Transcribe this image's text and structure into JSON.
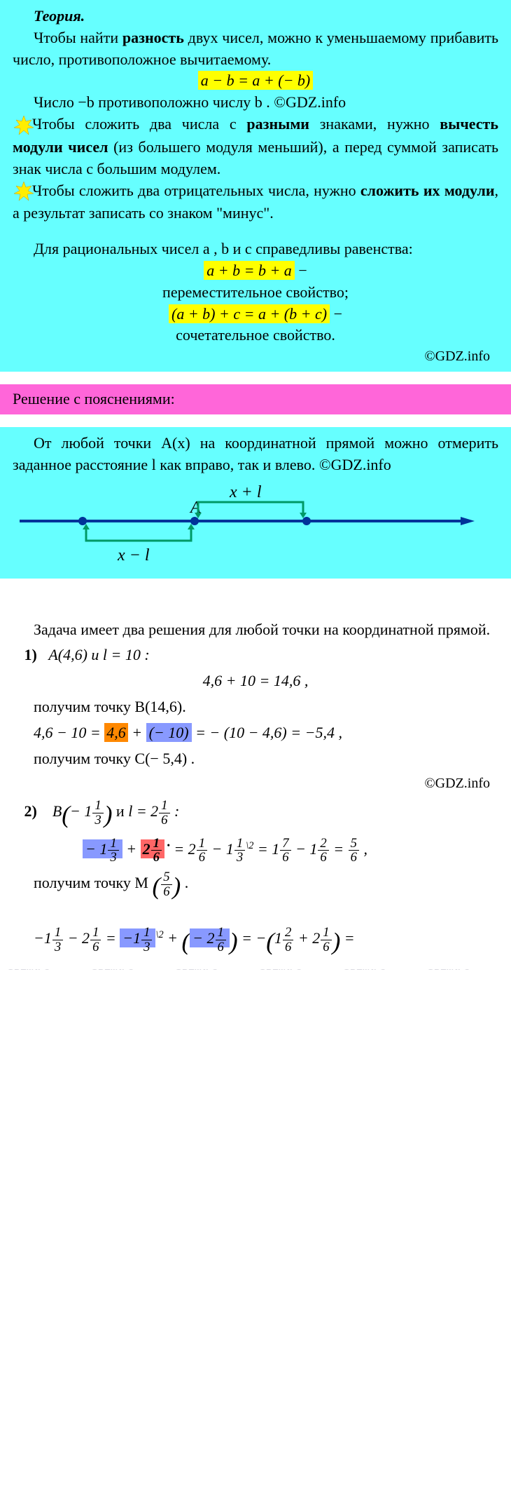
{
  "watermark_text": "GDZ.INFO",
  "watermark_color": "rgba(120,120,140,0.28)",
  "theory": {
    "title": "Теория.",
    "p1_a": "Чтобы найти ",
    "p1_b": "разность",
    "p1_c": " двух чисел, можно к уменьшаемому прибавить число, противоположное вычитаемому.",
    "f1": "a − b = a + (− b)",
    "p2": "Число −b противоположно числу b . ©GDZ.info",
    "p3_a": "Чтобы сложить два числа с ",
    "p3_b": "разными",
    "p3_c": " знаками, нужно ",
    "p3_d": "вычесть модули чисел",
    "p3_e": " (из большего модуля меньший), а перед суммой записать знак числа с большим модулем.",
    "p4_a": "Чтобы сложить два отрицательных числа, нужно ",
    "p4_b": "сложить их модули",
    "p4_c": ", а результат записать со знаком \"минус\".",
    "p5": "Для рациональных чисел a , b и c справедливы равенства:",
    "f2": "a + b = b + a",
    "f2_after": " −",
    "f2_lbl": "переместительное свойство;",
    "f3": "(a + b) + c = a + (b + c)",
    "f3_after": " −",
    "f3_lbl": "сочетательное свойство.",
    "copy": "©GDZ.info"
  },
  "pink_title": "Решение с пояснениями:",
  "cyan2": {
    "p1": "От любой точки A(x) на координатной прямой можно отмерить заданное расстояние l как вправо, так и влево. ©GDZ.info"
  },
  "diagram": {
    "label_A": "A",
    "label_xplus": "x + l",
    "label_xminus": "x − l",
    "line_color": "#003399",
    "bracket_color": "#009966"
  },
  "solution": {
    "intro": "Задача имеет два решения для любой точки на координатной прямой.",
    "it1_label": "1)",
    "it1_given": "A(4,6) и l = 10 :",
    "it1_l1": "4,6 + 10 = 14,6 ,",
    "it1_l2": "получим точку B(14,6).",
    "it1_l3_a": "4,6 − 10 = ",
    "it1_l3_b": "4,6",
    "it1_l3_c": " + ",
    "it1_l3_d": "(− 10)",
    "it1_l3_e": " = − (10 − 4,6) = −5,4 ,",
    "it1_l4": "получим точку C(− 5,4) .",
    "copy2": "©GDZ.info",
    "it2_label": "2)",
    "it2_B_pre": "B",
    "it2_B_n1_w": "− 1",
    "it2_B_n1_n": "1",
    "it2_B_n1_d": "3",
    "it2_and": " и ",
    "it2_l_pre": "l = 2",
    "it2_l_n": "1",
    "it2_l_d": "6",
    "it2_colon": " :",
    "it2_calc_a_w": "− 1",
    "it2_calc_a_n": "1",
    "it2_calc_a_d": "3",
    "it2_plus": " + ",
    "it2_calc_b_w": "2",
    "it2_calc_b_n": "1",
    "it2_calc_b_d": "6",
    "it2_eq1": " = 2",
    "it2_c1_n": "1",
    "it2_c1_d": "6",
    "it2_minus1": " − 1",
    "it2_c2_n": "1",
    "it2_c2_d": "3",
    "it2_sup2": "\\2",
    "it2_eq2": " = 1",
    "it2_c3_n": "7",
    "it2_c3_d": "6",
    "it2_minus2": " − 1",
    "it2_c4_n": "2",
    "it2_c4_d": "6",
    "it2_eq3": " = ",
    "it2_c5_n": "5",
    "it2_c5_d": "6",
    "it2_comma": " ,",
    "it2_res_pre": "получим точку M",
    "it2_res_n": "5",
    "it2_res_d": "6",
    "it2_res_dot": " .",
    "last_a_w": "−1",
    "last_a_n": "1",
    "last_a_d": "3",
    "last_minus": " − 2",
    "last_b_n": "1",
    "last_b_d": "6",
    "last_eq1": " = ",
    "last_c_w": "−1",
    "last_c_n": "1",
    "last_c_d": "3",
    "last_sup": "\\2",
    "last_plus": " + ",
    "last_d_w": "− 2",
    "last_d_n": "1",
    "last_d_d": "6",
    "last_eq2": " = −",
    "last_e_w": "1",
    "last_e_n": "2",
    "last_e_d": "6",
    "last_plus2": " + 2",
    "last_f_n": "1",
    "last_f_d": "6",
    "last_end": " ="
  },
  "colors": {
    "cyan_bg": "#66ffff",
    "pink_bg": "#ff66d9",
    "yellow": "#ffff00",
    "orange": "#ff8800",
    "red": "#ff6666",
    "blue": "#8899ff"
  }
}
